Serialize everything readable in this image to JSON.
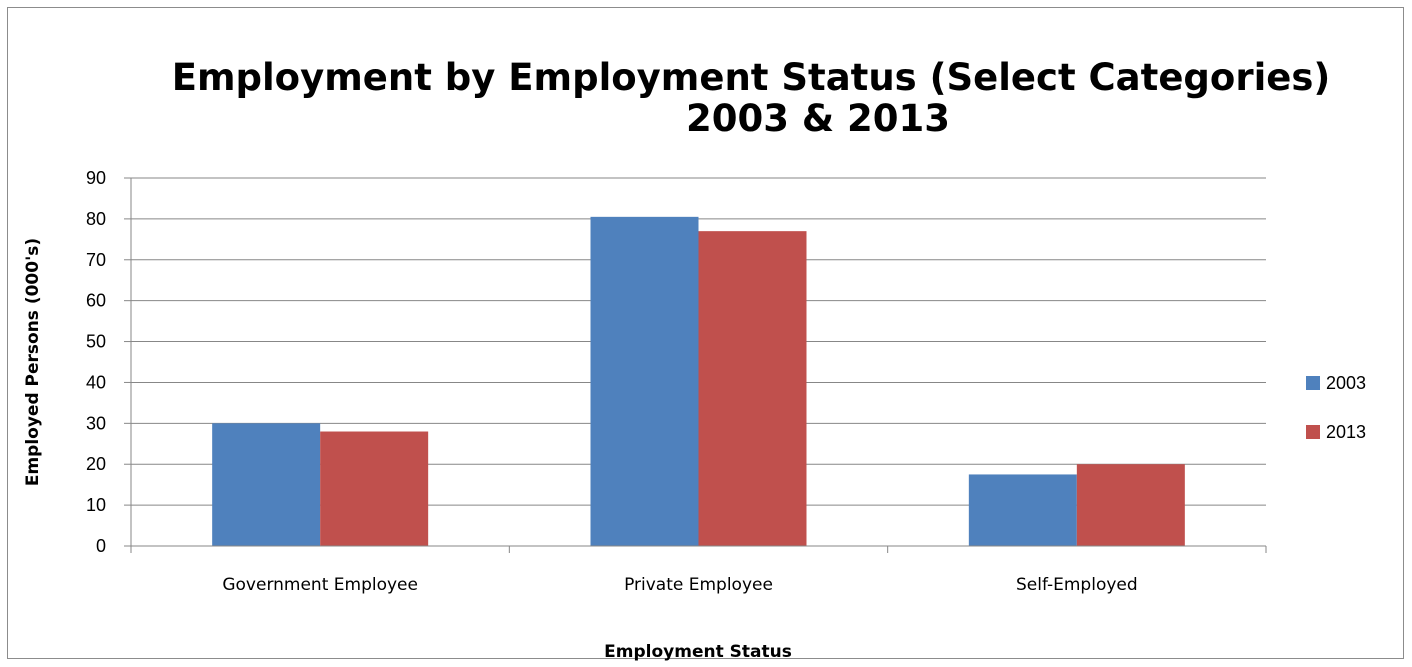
{
  "chart_data": {
    "type": "bar",
    "title_line1": "Employment by Employment Status (Select Categories)",
    "title_line2": "2003 & 2013",
    "xlabel": "Employment Status",
    "ylabel": "Employed Persons (000's)",
    "categories": [
      "Government Employee",
      "Private Employee",
      "Self-Employed"
    ],
    "series": [
      {
        "name": "2003",
        "color": "#4F81BD",
        "values": [
          30,
          80.5,
          17.5
        ]
      },
      {
        "name": "2013",
        "color": "#C0504D",
        "values": [
          28,
          77,
          20
        ]
      }
    ],
    "ylim": [
      0,
      90
    ],
    "yticks": [
      0,
      10,
      20,
      30,
      40,
      50,
      60,
      70,
      80,
      90
    ],
    "grid": true,
    "legend": "right"
  }
}
